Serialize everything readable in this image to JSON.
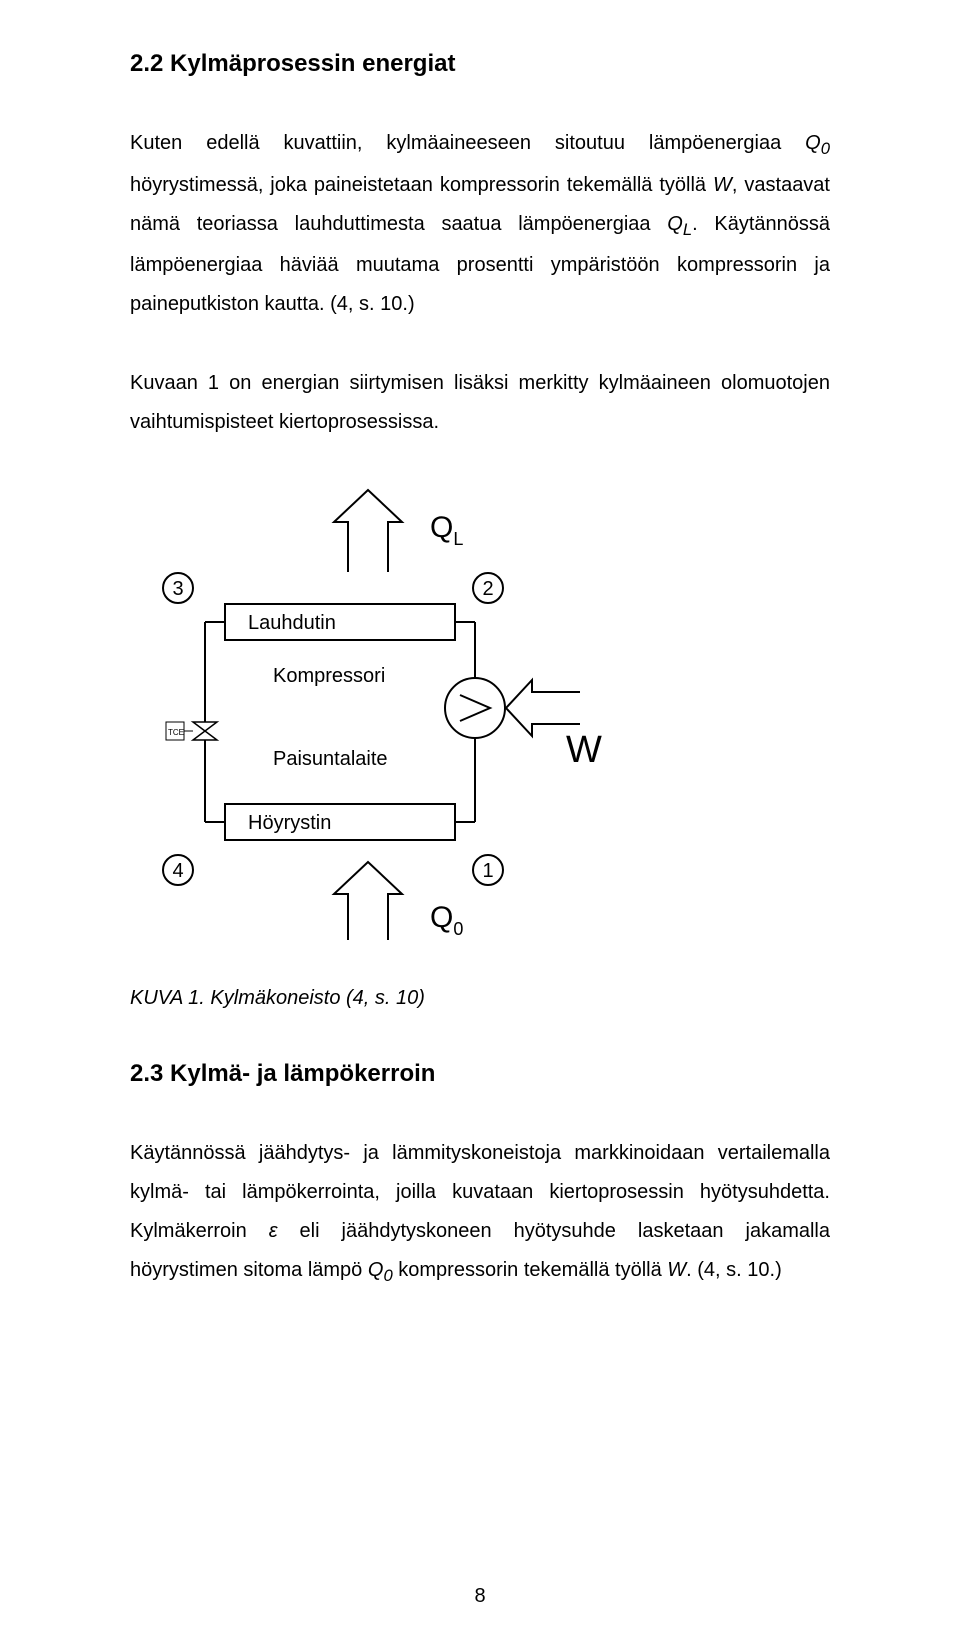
{
  "section1": {
    "heading": "2.2 Kylmäprosessin energiat",
    "para1_html": "Kuten edellä kuvattiin, kylmäaineeseen sitoutuu lämpöenergiaa <i>Q<sub>0</sub></i> höyrystimessä, joka paineistetaan kompressorin tekemällä työllä <i>W</i>, vastaavat nämä teoriassa lauhduttimesta saatua lämpöenergiaa <i>Q<sub>L</sub></i>. Käytännössä lämpöenergiaa häviää muutama prosentti ympäristöön kompressorin ja paineputkiston kautta. (4, s. 10.)",
    "para2": "Kuvaan 1 on energian siirtymisen lisäksi merkitty kylmäaineen olomuotojen vaihtumispisteet kiertoprosessissa."
  },
  "figure": {
    "caption": "KUVA 1. Kylmäkoneisto (4, s. 10)",
    "nodes": {
      "n3": "3",
      "n2": "2",
      "n4": "4",
      "n1": "1"
    },
    "labels": {
      "lauhdutin": "Lauhdutin",
      "kompressori": "Kompressori",
      "paisuntalaite": "Paisuntalaite",
      "hoyrystin": "Höyrystin",
      "ql": "Q",
      "ql_sub": "L",
      "w": "W",
      "q0": "Q",
      "q0_sub": "0",
      "tce": "TCE"
    },
    "style": {
      "stroke": "#000000",
      "stroke_thin": 1.2,
      "stroke_med": 2,
      "fill_bg": "#ffffff",
      "font_label": 20,
      "font_node": 20,
      "font_sym": 30,
      "font_sym_sub": 18,
      "font_w": 38,
      "font_tce": 9
    }
  },
  "section2": {
    "heading": "2.3 Kylmä- ja lämpökerroin",
    "para_html": "Käytännössä jäähdytys- ja lämmityskoneistoja markkinoidaan vertailemalla kylmä- tai lämpökerrointa, joilla kuvataan kiertoprosessin hyötysuhdetta. Kylmäkerroin <i>ε</i> eli jäähdytyskoneen hyötysuhde lasketaan jakamalla höyrystimen sitoma lämpö <i>Q<sub>0</sub></i> kompressorin tekemällä työllä <i>W</i>. (4, s. 10.)"
  },
  "page_number": "8"
}
